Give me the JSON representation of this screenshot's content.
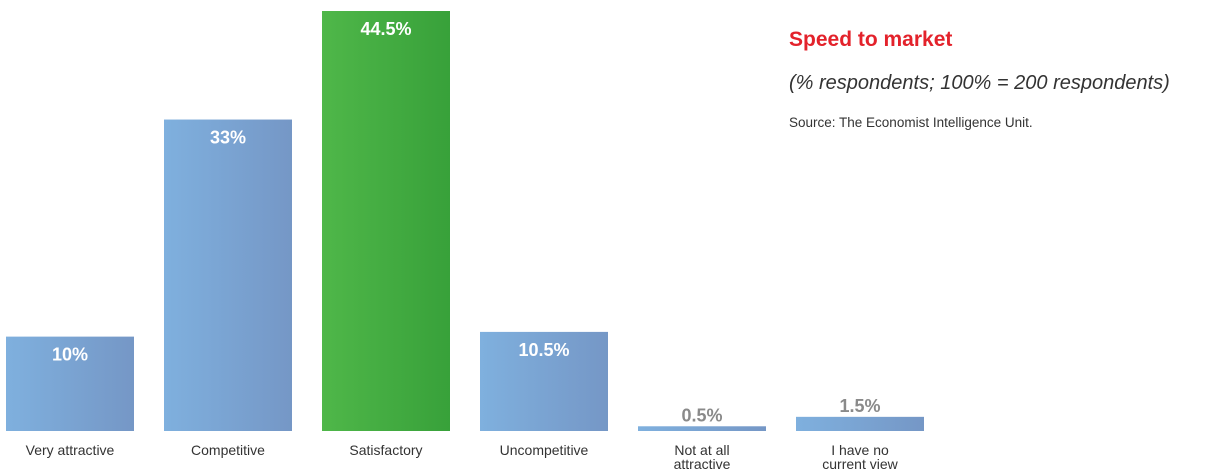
{
  "chart_data": {
    "type": "bar",
    "title": "Speed to market",
    "subtitle": "(% respondents; 100% = 200 respondents)",
    "source": "Source: The Economist Intelligence Unit.",
    "categories": [
      [
        "Very attractive"
      ],
      [
        "Competitive"
      ],
      [
        "Satisfactory"
      ],
      [
        "Uncompetitive"
      ],
      [
        "Not at all",
        "attractive"
      ],
      [
        "I have no",
        "current view"
      ]
    ],
    "values": [
      10,
      33,
      44.5,
      10.5,
      0.5,
      1.5
    ],
    "value_labels": [
      "10%",
      "33%",
      "44.5%",
      "10.5%",
      "0.5%",
      "1.5%"
    ],
    "highlight_index": 2,
    "ylim": [
      0,
      44.5
    ],
    "grid": false,
    "colors": {
      "bar_light": "#7fb0de",
      "bar_dark": "#7597c6",
      "highlight_light": "#4fb749",
      "highlight_dark": "#38a13a",
      "title": "#e3222b",
      "label_inside": "#ffffff",
      "label_outside": "#8a8a8a"
    }
  }
}
